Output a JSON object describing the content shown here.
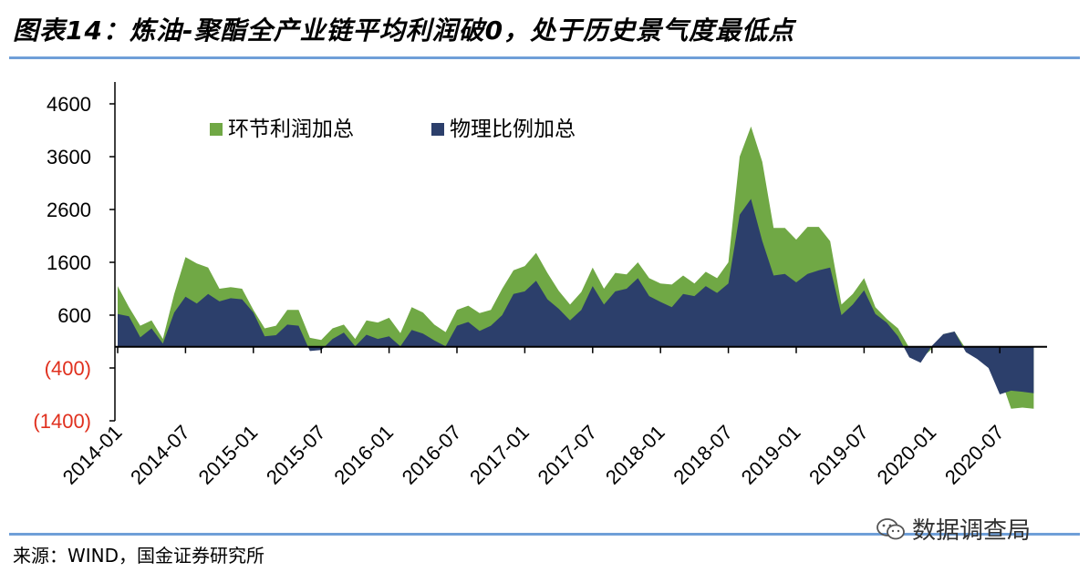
{
  "title": "图表14：炼油-聚酯全产业链平均利润破0，处于历史景气度最低点",
  "source": "来源：WIND，国金证券研究所",
  "watermark": "数据调查局",
  "colors": {
    "green": "#70a845",
    "navy": "#2c3f6b",
    "negative_label": "#e0301e",
    "rule": "#6f9fd8"
  },
  "chart_data": {
    "type": "area",
    "title": "",
    "xlabel": "",
    "ylabel": "",
    "ylim": [
      -1400,
      4600
    ],
    "yticks": [
      {
        "value": 4600,
        "label": "4600"
      },
      {
        "value": 3600,
        "label": "3600"
      },
      {
        "value": 2600,
        "label": "2600"
      },
      {
        "value": 1600,
        "label": "1600"
      },
      {
        "value": 600,
        "label": "600"
      },
      {
        "value": -400,
        "label": "(400)"
      },
      {
        "value": -1400,
        "label": "(1400)"
      }
    ],
    "xticks": [
      "2014-01",
      "2014-07",
      "2015-01",
      "2015-07",
      "2016-01",
      "2016-07",
      "2017-01",
      "2017-07",
      "2018-01",
      "2018-07",
      "2019-01",
      "2019-07",
      "2020-01",
      "2020-07"
    ],
    "legend": [
      "环节利润加总",
      "物理比例加总"
    ],
    "grid": false,
    "x": [
      "2014-01",
      "2014-02",
      "2014-03",
      "2014-04",
      "2014-05",
      "2014-06",
      "2014-07",
      "2014-08",
      "2014-09",
      "2014-10",
      "2014-11",
      "2014-12",
      "2015-01",
      "2015-02",
      "2015-03",
      "2015-04",
      "2015-05",
      "2015-06",
      "2015-07",
      "2015-08",
      "2015-09",
      "2015-10",
      "2015-11",
      "2015-12",
      "2016-01",
      "2016-02",
      "2016-03",
      "2016-04",
      "2016-05",
      "2016-06",
      "2016-07",
      "2016-08",
      "2016-09",
      "2016-10",
      "2016-11",
      "2016-12",
      "2017-01",
      "2017-02",
      "2017-03",
      "2017-04",
      "2017-05",
      "2017-06",
      "2017-07",
      "2017-08",
      "2017-09",
      "2017-10",
      "2017-11",
      "2017-12",
      "2018-01",
      "2018-02",
      "2018-03",
      "2018-04",
      "2018-05",
      "2018-06",
      "2018-07",
      "2018-08",
      "2018-09",
      "2018-10",
      "2018-11",
      "2018-12",
      "2019-01",
      "2019-02",
      "2019-03",
      "2019-04",
      "2019-05",
      "2019-06",
      "2019-07",
      "2019-08",
      "2019-09",
      "2019-10",
      "2019-11",
      "2019-12",
      "2020-01",
      "2020-02",
      "2020-03",
      "2020-04",
      "2020-05",
      "2020-06",
      "2020-07",
      "2020-08",
      "2020-09",
      "2020-10"
    ],
    "series": [
      {
        "name": "环节利润加总",
        "values": [
          1150,
          750,
          400,
          500,
          150,
          1000,
          1700,
          1580,
          1500,
          1100,
          1130,
          1100,
          700,
          350,
          400,
          700,
          700,
          170,
          130,
          350,
          420,
          150,
          500,
          460,
          550,
          260,
          750,
          650,
          420,
          280,
          700,
          780,
          640,
          700,
          1100,
          1450,
          1530,
          1780,
          1400,
          1060,
          800,
          1040,
          1500,
          1100,
          1400,
          1370,
          1600,
          1300,
          1200,
          1180,
          1350,
          1200,
          1420,
          1300,
          1600,
          3600,
          4170,
          3500,
          2250,
          2250,
          2030,
          2270,
          2270,
          2000,
          800,
          1000,
          1300,
          750,
          530,
          350,
          -20,
          -230,
          -40,
          240,
          290,
          -40,
          -130,
          -200,
          -550,
          -1170,
          -1150,
          -1170
        ]
      },
      {
        "name": "物理比例加总",
        "values": [
          620,
          580,
          180,
          350,
          60,
          650,
          950,
          820,
          1000,
          860,
          920,
          900,
          650,
          200,
          220,
          420,
          400,
          -80,
          -60,
          150,
          270,
          10,
          230,
          150,
          200,
          10,
          320,
          250,
          120,
          10,
          400,
          470,
          300,
          400,
          600,
          1000,
          1050,
          1250,
          900,
          720,
          500,
          700,
          1150,
          800,
          1050,
          1100,
          1300,
          960,
          850,
          750,
          1000,
          960,
          1150,
          1020,
          1200,
          2500,
          2800,
          2000,
          1350,
          1380,
          1220,
          1380,
          1450,
          1500,
          600,
          800,
          1070,
          620,
          460,
          200,
          -200,
          -300,
          20,
          240,
          290,
          -100,
          -230,
          -400,
          -900,
          -830,
          -850,
          -880
        ]
      }
    ]
  }
}
